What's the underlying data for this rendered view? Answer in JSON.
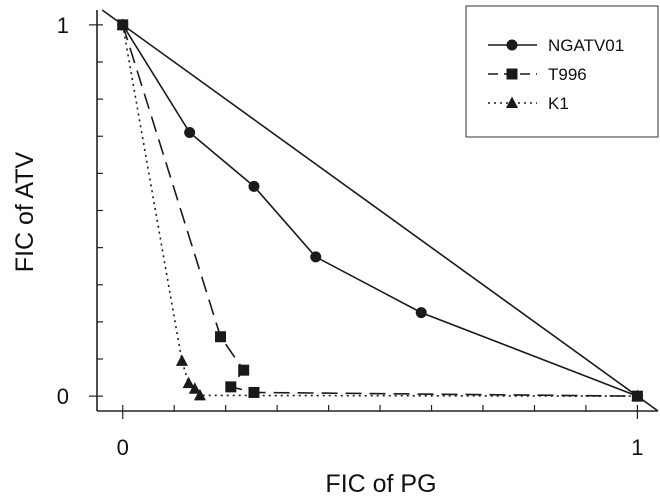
{
  "chart_data": {
    "type": "line",
    "title": "",
    "xlabel": "FIC of PG",
    "ylabel": "FIC of ATV",
    "xlim": [
      -0.05,
      1.04
    ],
    "ylim": [
      -0.04,
      1.04
    ],
    "xticks": [
      0,
      1
    ],
    "yticks": [
      0,
      1
    ],
    "legend_position": "top-right",
    "grid": false,
    "reference_line": {
      "x": [
        0,
        1
      ],
      "y": [
        1,
        0
      ]
    },
    "series": [
      {
        "name": "NGATV01",
        "marker": "circle",
        "linestyle": "solid",
        "color": "#1a1a1a",
        "x": [
          0,
          0.13,
          0.255,
          0.375,
          0.58,
          1.0
        ],
        "y": [
          1.0,
          0.71,
          0.565,
          0.375,
          0.225,
          0.0
        ]
      },
      {
        "name": "T996",
        "marker": "square",
        "linestyle": "dashed",
        "color": "#1a1a1a",
        "x": [
          0,
          0.19,
          0.235,
          0.21,
          0.255,
          1.0
        ],
        "y": [
          1.0,
          0.16,
          0.07,
          0.025,
          0.01,
          0.0
        ]
      },
      {
        "name": "K1",
        "marker": "triangle",
        "linestyle": "dotted",
        "color": "#1a1a1a",
        "x": [
          0,
          0.115,
          0.128,
          0.14,
          0.15,
          1.0
        ],
        "y": [
          1.0,
          0.095,
          0.035,
          0.02,
          0.002,
          0.0
        ]
      }
    ]
  }
}
